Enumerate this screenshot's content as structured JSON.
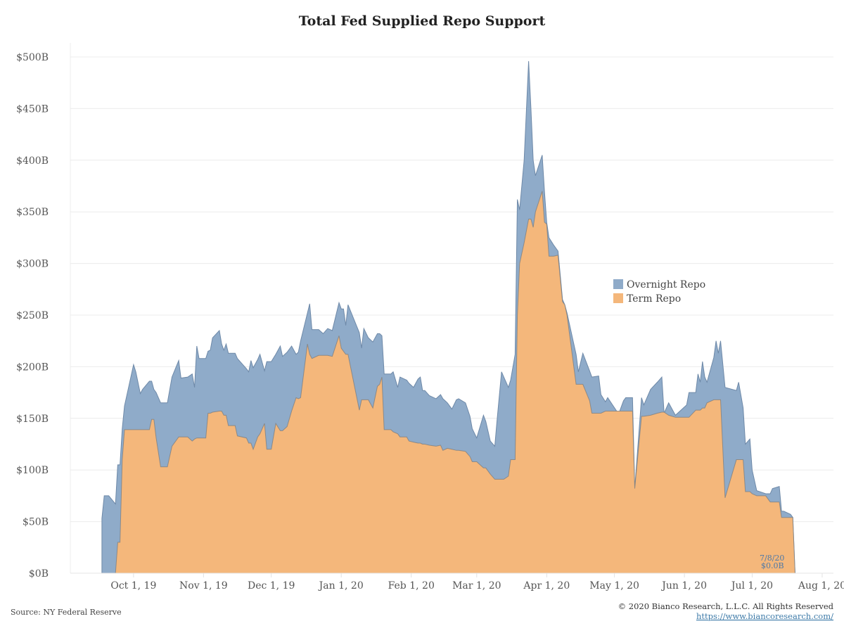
{
  "chart_data": {
    "type": "area",
    "stacked": true,
    "title": "Total Fed Supplied Repo Support",
    "xlabel": "",
    "ylabel": "",
    "ylim": [
      0,
      500
    ],
    "y_unit": "$B",
    "yticks": [
      0,
      50,
      100,
      150,
      200,
      250,
      300,
      350,
      400,
      450,
      500
    ],
    "ytick_labels": [
      "$0B",
      "$50B",
      "$100B",
      "$150B",
      "$200B",
      "$250B",
      "$300B",
      "$350B",
      "$400B",
      "$450B",
      "$500B"
    ],
    "xlim": [
      "2019-09-03",
      "2020-08-06"
    ],
    "xticks": [
      "2019-10-01",
      "2019-11-01",
      "2019-12-01",
      "2020-01-01",
      "2020-02-01",
      "2020-03-01",
      "2020-04-01",
      "2020-05-01",
      "2020-06-01",
      "2020-07-01",
      "2020-08-01"
    ],
    "xtick_labels": [
      "Oct 1, 19",
      "Nov 1, 19",
      "Dec 1, 19",
      "Jan 1, 20",
      "Feb 1, 20",
      "Mar 1, 20",
      "Apr 1, 20",
      "May 1, 20",
      "Jun 1, 20",
      "Jul 1, 20",
      "Aug 1, 20"
    ],
    "grid": true,
    "legend_position": "right-center",
    "series": [
      {
        "name": "Overnight Repo",
        "color": "#8fabc9",
        "line_color": "#6e89a8"
      },
      {
        "name": "Term Repo",
        "color": "#f4b77b",
        "line_color": "#7f7f7f"
      }
    ],
    "points": [
      {
        "date": "2019-09-17",
        "total": 53,
        "term": 0
      },
      {
        "date": "2019-09-18",
        "total": 75,
        "term": 0
      },
      {
        "date": "2019-09-20",
        "total": 75,
        "term": 0
      },
      {
        "date": "2019-09-23",
        "total": 67,
        "term": 0
      },
      {
        "date": "2019-09-24",
        "total": 105,
        "term": 30
      },
      {
        "date": "2019-09-25",
        "total": 105,
        "term": 30
      },
      {
        "date": "2019-09-26",
        "total": 140,
        "term": 110
      },
      {
        "date": "2019-09-27",
        "total": 162,
        "term": 139
      },
      {
        "date": "2019-10-01",
        "total": 202,
        "term": 139
      },
      {
        "date": "2019-10-02",
        "total": 195,
        "term": 139
      },
      {
        "date": "2019-10-04",
        "total": 174,
        "term": 139
      },
      {
        "date": "2019-10-05",
        "total": 178,
        "term": 139
      },
      {
        "date": "2019-10-08",
        "total": 186,
        "term": 139
      },
      {
        "date": "2019-10-09",
        "total": 186,
        "term": 149
      },
      {
        "date": "2019-10-10",
        "total": 178,
        "term": 149
      },
      {
        "date": "2019-10-11",
        "total": 175,
        "term": 131
      },
      {
        "date": "2019-10-13",
        "total": 165,
        "term": 103
      },
      {
        "date": "2019-10-16",
        "total": 165,
        "term": 103
      },
      {
        "date": "2019-10-18",
        "total": 190,
        "term": 123
      },
      {
        "date": "2019-10-21",
        "total": 206,
        "term": 132
      },
      {
        "date": "2019-10-22",
        "total": 189,
        "term": 132
      },
      {
        "date": "2019-10-25",
        "total": 190,
        "term": 132
      },
      {
        "date": "2019-10-27",
        "total": 193,
        "term": 128
      },
      {
        "date": "2019-10-28",
        "total": 180,
        "term": 130
      },
      {
        "date": "2019-10-29",
        "total": 220,
        "term": 131
      },
      {
        "date": "2019-10-30",
        "total": 208,
        "term": 131
      },
      {
        "date": "2019-11-02",
        "total": 208,
        "term": 131
      },
      {
        "date": "2019-11-03",
        "total": 215,
        "term": 155
      },
      {
        "date": "2019-11-04",
        "total": 216,
        "term": 155
      },
      {
        "date": "2019-11-05",
        "total": 228,
        "term": 156
      },
      {
        "date": "2019-11-08",
        "total": 235,
        "term": 157
      },
      {
        "date": "2019-11-09",
        "total": 222,
        "term": 157
      },
      {
        "date": "2019-11-10",
        "total": 216,
        "term": 153
      },
      {
        "date": "2019-11-11",
        "total": 222,
        "term": 153
      },
      {
        "date": "2019-11-12",
        "total": 213,
        "term": 143
      },
      {
        "date": "2019-11-15",
        "total": 213,
        "term": 143
      },
      {
        "date": "2019-11-16",
        "total": 208,
        "term": 133
      },
      {
        "date": "2019-11-20",
        "total": 198,
        "term": 131
      },
      {
        "date": "2019-11-21",
        "total": 195,
        "term": 126
      },
      {
        "date": "2019-11-22",
        "total": 206,
        "term": 126
      },
      {
        "date": "2019-11-23",
        "total": 199,
        "term": 120
      },
      {
        "date": "2019-11-25",
        "total": 207,
        "term": 132
      },
      {
        "date": "2019-11-26",
        "total": 212,
        "term": 135
      },
      {
        "date": "2019-11-28",
        "total": 196,
        "term": 145
      },
      {
        "date": "2019-11-29",
        "total": 205,
        "term": 120
      },
      {
        "date": "2019-12-01",
        "total": 205,
        "term": 120
      },
      {
        "date": "2019-12-03",
        "total": 212,
        "term": 145
      },
      {
        "date": "2019-12-05",
        "total": 220,
        "term": 138
      },
      {
        "date": "2019-12-06",
        "total": 210,
        "term": 138
      },
      {
        "date": "2019-12-08",
        "total": 214,
        "term": 142
      },
      {
        "date": "2019-12-10",
        "total": 220,
        "term": 157
      },
      {
        "date": "2019-12-12",
        "total": 212,
        "term": 170
      },
      {
        "date": "2019-12-13",
        "total": 214,
        "term": 169
      },
      {
        "date": "2019-12-14",
        "total": 225,
        "term": 170
      },
      {
        "date": "2019-12-17",
        "total": 252,
        "term": 222
      },
      {
        "date": "2019-12-18",
        "total": 261,
        "term": 212
      },
      {
        "date": "2019-12-19",
        "total": 236,
        "term": 208
      },
      {
        "date": "2019-12-22",
        "total": 236,
        "term": 211
      },
      {
        "date": "2019-12-24",
        "total": 232,
        "term": 211
      },
      {
        "date": "2019-12-26",
        "total": 237,
        "term": 211
      },
      {
        "date": "2019-12-28",
        "total": 235,
        "term": 210
      },
      {
        "date": "2019-12-31",
        "total": 262,
        "term": 230
      },
      {
        "date": "2020-01-01",
        "total": 256,
        "term": 218
      },
      {
        "date": "2020-01-02",
        "total": 256,
        "term": 215
      },
      {
        "date": "2020-01-03",
        "total": 240,
        "term": 212
      },
      {
        "date": "2020-01-04",
        "total": 260,
        "term": 212
      },
      {
        "date": "2020-01-09",
        "total": 233,
        "term": 158
      },
      {
        "date": "2020-01-10",
        "total": 218,
        "term": 168
      },
      {
        "date": "2020-01-11",
        "total": 237,
        "term": 168
      },
      {
        "date": "2020-01-13",
        "total": 228,
        "term": 168
      },
      {
        "date": "2020-01-15",
        "total": 224,
        "term": 160
      },
      {
        "date": "2020-01-17",
        "total": 232,
        "term": 181
      },
      {
        "date": "2020-01-18",
        "total": 232,
        "term": 183
      },
      {
        "date": "2020-01-19",
        "total": 230,
        "term": 190
      },
      {
        "date": "2020-01-20",
        "total": 193,
        "term": 139
      },
      {
        "date": "2020-01-23",
        "total": 193,
        "term": 139
      },
      {
        "date": "2020-01-24",
        "total": 195,
        "term": 137
      },
      {
        "date": "2020-01-26",
        "total": 180,
        "term": 135
      },
      {
        "date": "2020-01-27",
        "total": 190,
        "term": 132
      },
      {
        "date": "2020-01-30",
        "total": 187,
        "term": 132
      },
      {
        "date": "2020-01-31",
        "total": 184,
        "term": 128
      },
      {
        "date": "2020-02-02",
        "total": 180,
        "term": 127
      },
      {
        "date": "2020-02-04",
        "total": 188,
        "term": 126
      },
      {
        "date": "2020-02-05",
        "total": 190,
        "term": 126
      },
      {
        "date": "2020-02-06",
        "total": 177,
        "term": 125
      },
      {
        "date": "2020-02-07",
        "total": 177,
        "term": 125
      },
      {
        "date": "2020-02-09",
        "total": 172,
        "term": 124
      },
      {
        "date": "2020-02-12",
        "total": 169,
        "term": 123
      },
      {
        "date": "2020-02-14",
        "total": 173,
        "term": 124
      },
      {
        "date": "2020-02-15",
        "total": 169,
        "term": 119
      },
      {
        "date": "2020-02-17",
        "total": 165,
        "term": 121
      },
      {
        "date": "2020-02-19",
        "total": 159,
        "term": 120
      },
      {
        "date": "2020-02-21",
        "total": 168,
        "term": 119
      },
      {
        "date": "2020-02-22",
        "total": 169,
        "term": 119
      },
      {
        "date": "2020-02-25",
        "total": 165,
        "term": 118
      },
      {
        "date": "2020-02-27",
        "total": 152,
        "term": 113
      },
      {
        "date": "2020-02-28",
        "total": 140,
        "term": 108
      },
      {
        "date": "2020-03-01",
        "total": 131,
        "term": 108
      },
      {
        "date": "2020-03-04",
        "total": 153,
        "term": 102
      },
      {
        "date": "2020-03-05",
        "total": 147,
        "term": 102
      },
      {
        "date": "2020-03-07",
        "total": 128,
        "term": 96
      },
      {
        "date": "2020-03-09",
        "total": 123,
        "term": 91
      },
      {
        "date": "2020-03-10",
        "total": 148,
        "term": 91
      },
      {
        "date": "2020-03-12",
        "total": 195,
        "term": 91
      },
      {
        "date": "2020-03-13",
        "total": 190,
        "term": 91
      },
      {
        "date": "2020-03-15",
        "total": 180,
        "term": 94
      },
      {
        "date": "2020-03-16",
        "total": 187,
        "term": 110
      },
      {
        "date": "2020-03-18",
        "total": 212,
        "term": 110
      },
      {
        "date": "2020-03-19",
        "total": 362,
        "term": 250
      },
      {
        "date": "2020-03-20",
        "total": 352,
        "term": 300
      },
      {
        "date": "2020-03-22",
        "total": 400,
        "term": 320
      },
      {
        "date": "2020-03-24",
        "total": 496,
        "term": 343
      },
      {
        "date": "2020-03-25",
        "total": 450,
        "term": 343
      },
      {
        "date": "2020-03-26",
        "total": 400,
        "term": 335
      },
      {
        "date": "2020-03-27",
        "total": 385,
        "term": 350
      },
      {
        "date": "2020-03-30",
        "total": 405,
        "term": 370
      },
      {
        "date": "2020-03-31",
        "total": 370,
        "term": 340
      },
      {
        "date": "2020-04-01",
        "total": 340,
        "term": 338
      },
      {
        "date": "2020-04-02",
        "total": 325,
        "term": 307
      },
      {
        "date": "2020-04-04",
        "total": 318,
        "term": 307
      },
      {
        "date": "2020-04-06",
        "total": 312,
        "term": 308
      },
      {
        "date": "2020-04-08",
        "total": 265,
        "term": 263
      },
      {
        "date": "2020-04-09",
        "total": 260,
        "term": 260
      },
      {
        "date": "2020-04-10",
        "total": 252,
        "term": 250
      },
      {
        "date": "2020-04-14",
        "total": 212,
        "term": 183
      },
      {
        "date": "2020-04-15",
        "total": 195,
        "term": 183
      },
      {
        "date": "2020-04-17",
        "total": 213,
        "term": 183
      },
      {
        "date": "2020-04-20",
        "total": 196,
        "term": 167
      },
      {
        "date": "2020-04-21",
        "total": 190,
        "term": 155
      },
      {
        "date": "2020-04-24",
        "total": 191,
        "term": 155
      },
      {
        "date": "2020-04-25",
        "total": 173,
        "term": 155
      },
      {
        "date": "2020-04-27",
        "total": 166,
        "term": 157
      },
      {
        "date": "2020-04-28",
        "total": 170,
        "term": 157
      },
      {
        "date": "2020-05-02",
        "total": 157,
        "term": 157
      },
      {
        "date": "2020-05-03",
        "total": 155,
        "term": 157
      },
      {
        "date": "2020-05-05",
        "total": 167,
        "term": 157
      },
      {
        "date": "2020-05-06",
        "total": 170,
        "term": 157
      },
      {
        "date": "2020-05-09",
        "total": 170,
        "term": 157
      },
      {
        "date": "2020-05-10",
        "total": 82,
        "term": 82
      },
      {
        "date": "2020-05-13",
        "total": 170,
        "term": 152
      },
      {
        "date": "2020-05-14",
        "total": 163,
        "term": 152
      },
      {
        "date": "2020-05-17",
        "total": 178,
        "term": 153
      },
      {
        "date": "2020-05-20",
        "total": 185,
        "term": 155
      },
      {
        "date": "2020-05-22",
        "total": 190,
        "term": 156
      },
      {
        "date": "2020-05-23",
        "total": 155,
        "term": 156
      },
      {
        "date": "2020-05-25",
        "total": 165,
        "term": 153
      },
      {
        "date": "2020-05-28",
        "total": 153,
        "term": 151
      },
      {
        "date": "2020-06-02",
        "total": 163,
        "term": 151
      },
      {
        "date": "2020-06-03",
        "total": 175,
        "term": 151
      },
      {
        "date": "2020-06-06",
        "total": 175,
        "term": 158
      },
      {
        "date": "2020-06-07",
        "total": 193,
        "term": 158
      },
      {
        "date": "2020-06-08",
        "total": 185,
        "term": 158
      },
      {
        "date": "2020-06-09",
        "total": 205,
        "term": 160
      },
      {
        "date": "2020-06-10",
        "total": 190,
        "term": 160
      },
      {
        "date": "2020-06-11",
        "total": 185,
        "term": 165
      },
      {
        "date": "2020-06-14",
        "total": 209,
        "term": 168
      },
      {
        "date": "2020-06-15",
        "total": 225,
        "term": 168
      },
      {
        "date": "2020-06-16",
        "total": 213,
        "term": 168
      },
      {
        "date": "2020-06-17",
        "total": 225,
        "term": 168
      },
      {
        "date": "2020-06-19",
        "total": 180,
        "term": 73
      },
      {
        "date": "2020-06-24",
        "total": 177,
        "term": 110
      },
      {
        "date": "2020-06-25",
        "total": 185,
        "term": 110
      },
      {
        "date": "2020-06-27",
        "total": 160,
        "term": 110
      },
      {
        "date": "2020-06-28",
        "total": 125,
        "term": 79
      },
      {
        "date": "2020-06-30",
        "total": 130,
        "term": 79
      },
      {
        "date": "2020-07-01",
        "total": 100,
        "term": 77
      },
      {
        "date": "2020-07-03",
        "total": 80,
        "term": 75
      },
      {
        "date": "2020-07-07",
        "total": 77,
        "term": 75
      },
      {
        "date": "2020-07-09",
        "total": 77,
        "term": 69
      },
      {
        "date": "2020-07-10",
        "total": 82,
        "term": 69
      },
      {
        "date": "2020-07-13",
        "total": 84,
        "term": 69
      },
      {
        "date": "2020-07-14",
        "total": 60,
        "term": 54
      },
      {
        "date": "2020-07-15",
        "total": 60,
        "term": 54
      },
      {
        "date": "2020-07-18",
        "total": 57,
        "term": 54
      },
      {
        "date": "2020-07-19",
        "total": 54,
        "term": 54
      },
      {
        "date": "2020-07-20",
        "total": 0,
        "term": 0
      },
      {
        "date": "2020-08-01",
        "total": 0,
        "term": 0
      }
    ],
    "legend": [
      "Overnight Repo",
      "Term Repo"
    ],
    "annotation": {
      "date_label": "7/8/20",
      "value_label": "$0.0B"
    }
  },
  "footer": {
    "source": "Source: NY Federal Reserve",
    "copyright": "© 2020 Bianco Research, L.L.C. All Rights Reserved",
    "url": "https://www.biancoresearch.com/"
  }
}
